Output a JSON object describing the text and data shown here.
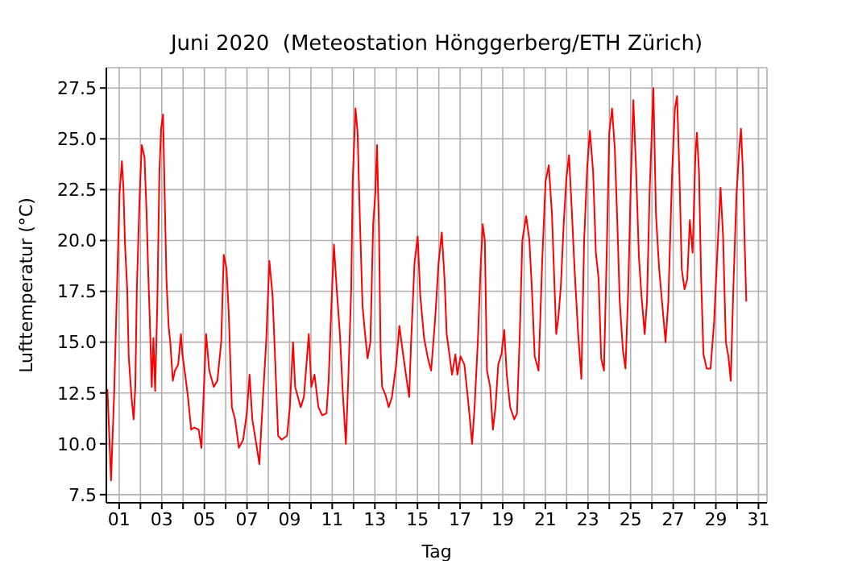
{
  "chart_data": {
    "type": "line",
    "title": "Juni 2020  (Meteostation Hönggerberg/ETH Zürich)",
    "xlabel": "Tag",
    "ylabel": "Lufttemperatur (°C)",
    "x": [
      0.45,
      0.62,
      0.77,
      0.87,
      1.02,
      1.13,
      1.2,
      1.28,
      1.38,
      1.45,
      1.58,
      1.68,
      1.76,
      1.83,
      1.96,
      2.06,
      2.19,
      2.29,
      2.36,
      2.46,
      2.53,
      2.61,
      2.69,
      2.79,
      2.89,
      2.97,
      3.06,
      3.14,
      3.22,
      3.32,
      3.4,
      3.52,
      3.62,
      3.77,
      3.9,
      3.97,
      4.1,
      4.23,
      4.38,
      4.53,
      4.73,
      4.86,
      4.98,
      5.08,
      5.23,
      5.44,
      5.61,
      5.79,
      5.91,
      6.04,
      6.14,
      6.29,
      6.44,
      6.62,
      6.82,
      6.99,
      7.12,
      7.25,
      7.45,
      7.58,
      7.75,
      7.9,
      8.05,
      8.2,
      8.33,
      8.46,
      8.63,
      8.88,
      9.01,
      9.16,
      9.26,
      9.39,
      9.52,
      9.67,
      9.9,
      10.02,
      10.17,
      10.35,
      10.53,
      10.73,
      10.83,
      10.96,
      11.08,
      11.21,
      11.36,
      11.49,
      11.64,
      11.76,
      11.89,
      11.96,
      12.09,
      12.19,
      12.29,
      12.42,
      12.54,
      12.66,
      12.79,
      12.92,
      13.02,
      13.1,
      13.19,
      13.27,
      13.34,
      13.5,
      13.65,
      13.8,
      14.0,
      14.15,
      14.3,
      14.43,
      14.61,
      14.7,
      14.86,
      15.01,
      15.13,
      15.31,
      15.49,
      15.64,
      15.82,
      15.99,
      16.14,
      16.27,
      16.37,
      16.5,
      16.62,
      16.78,
      16.87,
      17.02,
      17.2,
      17.33,
      17.48,
      17.56,
      17.68,
      17.83,
      17.96,
      18.06,
      18.16,
      18.26,
      18.41,
      18.54,
      18.66,
      18.79,
      18.94,
      19.07,
      19.19,
      19.35,
      19.54,
      19.67,
      19.8,
      19.92,
      20.1,
      20.25,
      20.37,
      20.5,
      20.68,
      20.86,
      21.01,
      21.16,
      21.31,
      21.51,
      21.61,
      21.73,
      21.86,
      21.99,
      22.11,
      22.24,
      22.37,
      22.54,
      22.69,
      22.82,
      22.97,
      23.09,
      23.24,
      23.37,
      23.5,
      23.62,
      23.75,
      23.88,
      24.0,
      24.13,
      24.26,
      24.38,
      24.49,
      24.64,
      24.76,
      24.89,
      25.01,
      25.13,
      25.26,
      25.39,
      25.51,
      25.66,
      25.77,
      25.89,
      26.07,
      26.19,
      26.34,
      26.49,
      26.64,
      26.77,
      26.95,
      27.08,
      27.18,
      27.28,
      27.4,
      27.53,
      27.66,
      27.78,
      27.91,
      28.04,
      28.11,
      28.21,
      28.31,
      28.42,
      28.57,
      28.75,
      28.92,
      29.07,
      29.22,
      29.34,
      29.47,
      29.59,
      29.7,
      29.82,
      29.97,
      30.1,
      30.18,
      30.27,
      30.35,
      30.43
    ],
    "series": [
      {
        "color": "#ff0000",
        "values": [
          12.7,
          8.2,
          12.6,
          16.5,
          22.3,
          23.9,
          22.6,
          19.7,
          17.6,
          14.3,
          12.3,
          11.2,
          12.8,
          17.6,
          22.1,
          24.7,
          24.1,
          21.3,
          18.6,
          15.4,
          12.8,
          15.2,
          12.6,
          16.8,
          23.4,
          25.5,
          26.2,
          22.1,
          18.1,
          15.8,
          15.0,
          13.1,
          13.6,
          13.9,
          15.4,
          14.4,
          13.4,
          12.3,
          10.7,
          10.8,
          10.7,
          9.8,
          12.8,
          15.4,
          13.6,
          12.8,
          13.1,
          15.0,
          19.3,
          18.6,
          16.5,
          11.8,
          11.2,
          9.8,
          10.2,
          11.5,
          13.4,
          11.2,
          9.9,
          9.0,
          12.3,
          15.0,
          19.0,
          17.3,
          13.9,
          10.4,
          10.2,
          10.4,
          11.8,
          15.0,
          12.8,
          12.3,
          11.8,
          12.3,
          15.4,
          12.8,
          13.4,
          11.8,
          11.4,
          11.5,
          13.1,
          16.8,
          19.8,
          17.6,
          15.4,
          12.6,
          10.0,
          13.4,
          17.6,
          22.9,
          26.5,
          25.3,
          21.3,
          16.8,
          15.4,
          14.2,
          15.0,
          20.8,
          22.3,
          24.7,
          20.8,
          14.6,
          12.8,
          12.4,
          11.8,
          12.3,
          13.9,
          15.8,
          14.6,
          13.6,
          12.3,
          15.0,
          18.9,
          20.2,
          17.3,
          15.2,
          14.2,
          13.6,
          16.0,
          18.9,
          20.4,
          18.1,
          15.4,
          14.4,
          13.4,
          14.4,
          13.4,
          14.3,
          13.9,
          12.6,
          11.0,
          10.0,
          11.8,
          15.0,
          18.6,
          20.8,
          20.0,
          13.6,
          12.8,
          10.7,
          11.8,
          13.9,
          14.4,
          15.6,
          13.4,
          11.8,
          11.2,
          11.5,
          15.4,
          20.0,
          21.2,
          20.0,
          17.6,
          14.3,
          13.6,
          19.2,
          22.9,
          23.7,
          21.3,
          15.4,
          16.2,
          17.8,
          20.8,
          23.1,
          24.2,
          21.5,
          18.6,
          15.4,
          13.2,
          20.0,
          23.7,
          25.4,
          23.4,
          19.4,
          18.1,
          14.2,
          13.6,
          19.4,
          25.3,
          26.5,
          24.5,
          20.8,
          17.0,
          14.6,
          13.7,
          17.6,
          22.9,
          26.9,
          23.4,
          19.2,
          17.3,
          15.4,
          17.0,
          22.3,
          27.5,
          21.3,
          18.6,
          16.8,
          15.0,
          17.0,
          23.4,
          26.5,
          27.1,
          23.7,
          18.6,
          17.6,
          18.1,
          21.0,
          19.4,
          24.2,
          25.3,
          23.4,
          18.1,
          14.4,
          13.7,
          13.7,
          16.0,
          19.4,
          22.6,
          20.2,
          15.0,
          14.3,
          13.1,
          17.6,
          22.3,
          24.5,
          25.5,
          23.4,
          20.0,
          17.0
        ]
      }
    ],
    "xlim": [
      0.4,
      31.4
    ],
    "xticks": [
      {
        "value": 1,
        "label": "01"
      },
      {
        "value": 2,
        "label": null
      },
      {
        "value": 3,
        "label": "03"
      },
      {
        "value": 4,
        "label": null
      },
      {
        "value": 5,
        "label": "05"
      },
      {
        "value": 6,
        "label": null
      },
      {
        "value": 7,
        "label": "07"
      },
      {
        "value": 8,
        "label": null
      },
      {
        "value": 9,
        "label": "09"
      },
      {
        "value": 10,
        "label": null
      },
      {
        "value": 11,
        "label": "11"
      },
      {
        "value": 12,
        "label": null
      },
      {
        "value": 13,
        "label": "13"
      },
      {
        "value": 14,
        "label": null
      },
      {
        "value": 15,
        "label": "15"
      },
      {
        "value": 16,
        "label": null
      },
      {
        "value": 17,
        "label": "17"
      },
      {
        "value": 18,
        "label": null
      },
      {
        "value": 19,
        "label": "19"
      },
      {
        "value": 20,
        "label": null
      },
      {
        "value": 21,
        "label": "21"
      },
      {
        "value": 22,
        "label": null
      },
      {
        "value": 23,
        "label": "23"
      },
      {
        "value": 24,
        "label": null
      },
      {
        "value": 25,
        "label": "25"
      },
      {
        "value": 26,
        "label": null
      },
      {
        "value": 27,
        "label": "27"
      },
      {
        "value": 28,
        "label": null
      },
      {
        "value": 29,
        "label": "29"
      },
      {
        "value": 30,
        "label": null
      },
      {
        "value": 31,
        "label": "31"
      }
    ],
    "ylim": [
      7.1,
      28.5
    ],
    "yticks": [
      {
        "value": 7.5,
        "label": "7.5"
      },
      {
        "value": 10,
        "label": "10.0"
      },
      {
        "value": 12.5,
        "label": "12.5"
      },
      {
        "value": 15,
        "label": "15.0"
      },
      {
        "value": 17.5,
        "label": "17.5"
      },
      {
        "value": 20,
        "label": "20.0"
      },
      {
        "value": 22.5,
        "label": "22.5"
      },
      {
        "value": 25,
        "label": "25.0"
      },
      {
        "value": 27.5,
        "label": "27.5"
      }
    ],
    "grid": true,
    "legend": false,
    "marker": "none",
    "line_style": "solid"
  }
}
